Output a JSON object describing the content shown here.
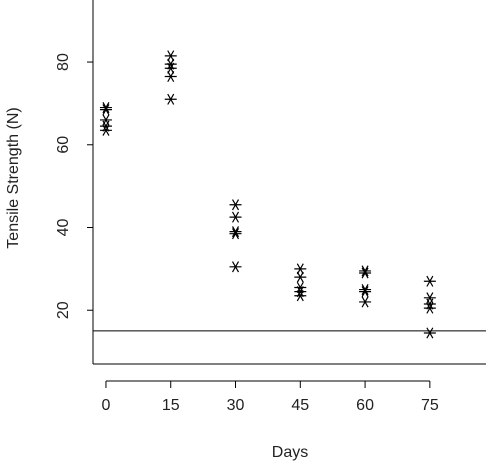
{
  "chart_data": {
    "type": "scatter",
    "xlabel": "Days",
    "ylabel": "Tensile Strength (N)",
    "x_ticks": [
      0,
      15,
      30,
      45,
      60,
      75
    ],
    "y_ticks": [
      20,
      40,
      60,
      80
    ],
    "xlim": [
      -3,
      88
    ],
    "ylim": [
      7,
      95
    ],
    "marker": "asterisk",
    "reference_line": {
      "y": 15
    },
    "points": [
      {
        "x": 0,
        "y": 69
      },
      {
        "x": 0,
        "y": 68.5
      },
      {
        "x": 0,
        "y": 66
      },
      {
        "x": 0,
        "y": 64.5
      },
      {
        "x": 0,
        "y": 63.5
      },
      {
        "x": 15,
        "y": 81.5
      },
      {
        "x": 15,
        "y": 79.5
      },
      {
        "x": 15,
        "y": 78.5
      },
      {
        "x": 15,
        "y": 76.5
      },
      {
        "x": 15,
        "y": 71
      },
      {
        "x": 30,
        "y": 45.5
      },
      {
        "x": 30,
        "y": 42.5
      },
      {
        "x": 30,
        "y": 39
      },
      {
        "x": 30,
        "y": 38.5
      },
      {
        "x": 30,
        "y": 30.5
      },
      {
        "x": 45,
        "y": 30
      },
      {
        "x": 45,
        "y": 28
      },
      {
        "x": 45,
        "y": 25.5
      },
      {
        "x": 45,
        "y": 24.5
      },
      {
        "x": 45,
        "y": 23.5
      },
      {
        "x": 60,
        "y": 29.5
      },
      {
        "x": 60,
        "y": 29
      },
      {
        "x": 60,
        "y": 25
      },
      {
        "x": 60,
        "y": 24.5
      },
      {
        "x": 60,
        "y": 22
      },
      {
        "x": 75,
        "y": 27
      },
      {
        "x": 75,
        "y": 23
      },
      {
        "x": 75,
        "y": 21.5
      },
      {
        "x": 75,
        "y": 20.5
      },
      {
        "x": 75,
        "y": 14.5
      }
    ]
  }
}
